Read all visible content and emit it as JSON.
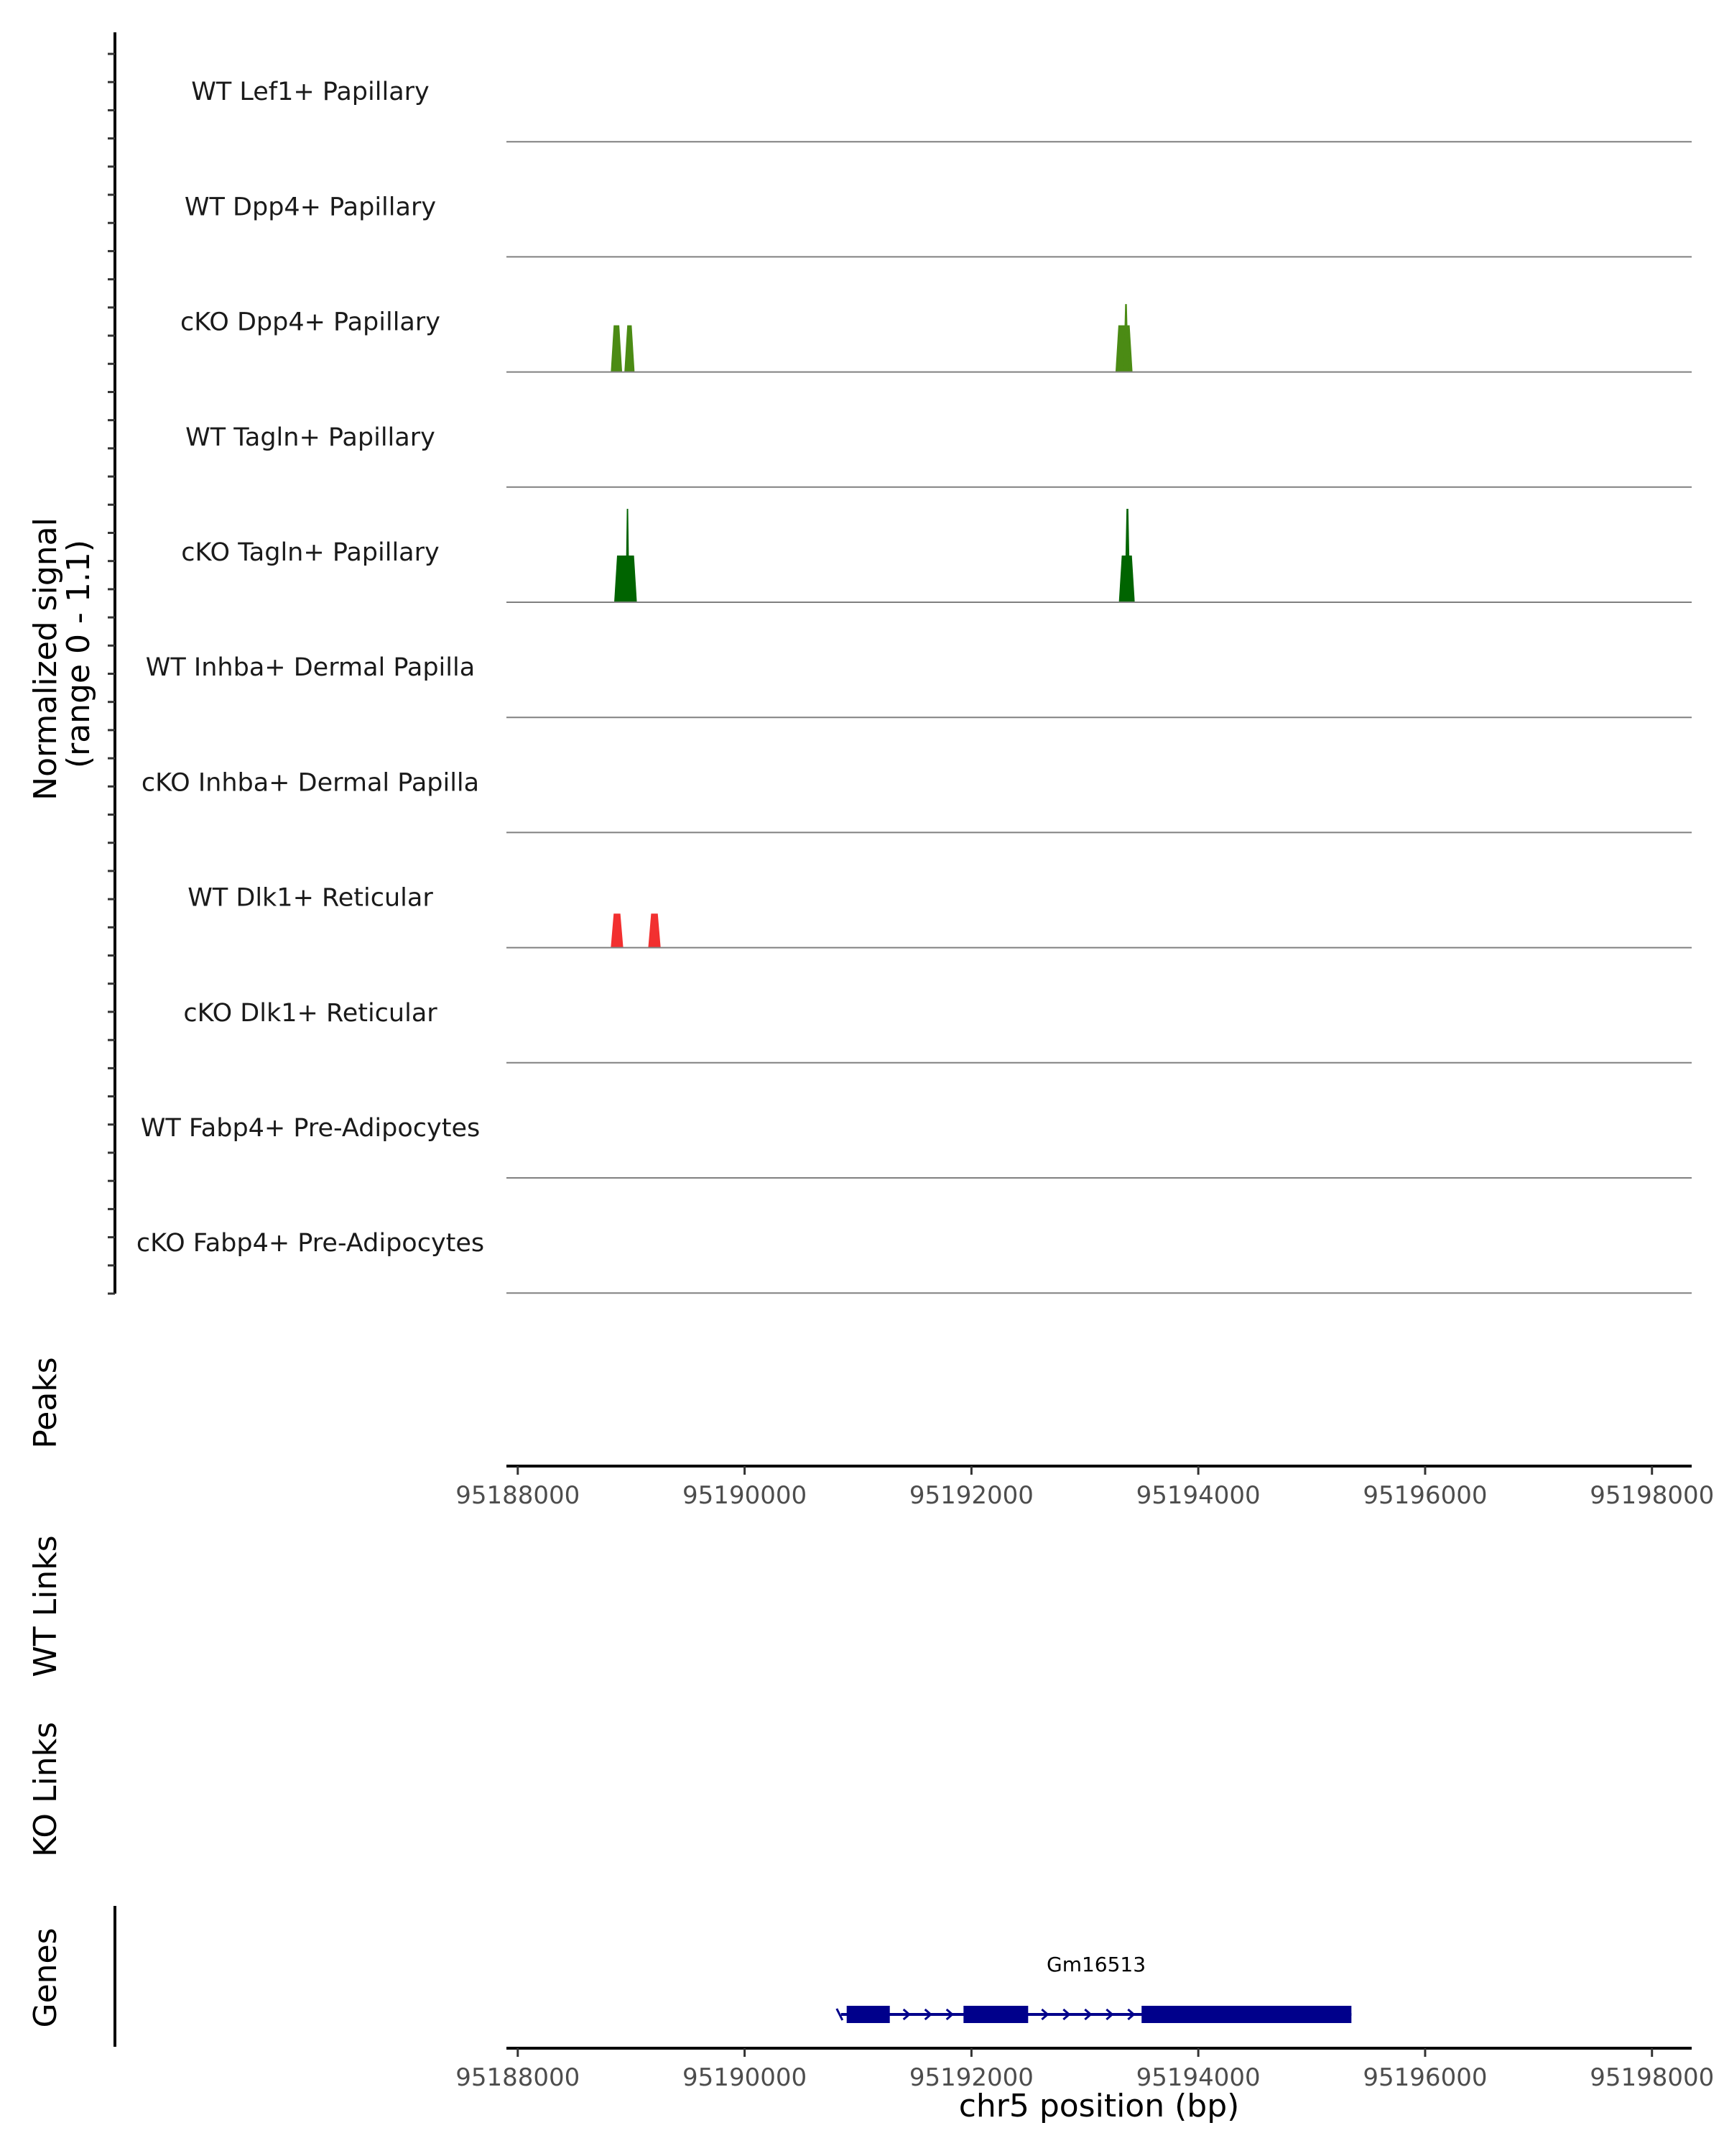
{
  "chart_data": {
    "type": "coverage_tracks",
    "y_axis_title": [
      "Normalized signal",
      "(range 0 - 1.1)"
    ],
    "ylim": [
      0,
      1.1
    ],
    "x_range": [
      95187900,
      95198350
    ],
    "x_ticks": [
      95188000,
      95190000,
      95192000,
      95194000,
      95196000,
      95198000
    ],
    "x_tick_labels": [
      "95188000",
      "95190000",
      "95192000",
      "95194000",
      "95196000",
      "95198000"
    ],
    "xlabel": "chr5 position (bp)",
    "tracks": [
      {
        "name": "WT Lef1+ Papillary",
        "color": "#6B8E23",
        "peaks": []
      },
      {
        "name": "WT Dpp4+ Papillary",
        "color": "#4B8B14",
        "peaks": []
      },
      {
        "name": "cKO Dpp4+ Papillary",
        "color": "#4B8B14",
        "peaks": [
          {
            "start": 95188820,
            "end": 95188920,
            "value": 0.55
          },
          {
            "start": 95188940,
            "end": 95189030,
            "value": 0.55
          },
          {
            "start": 95193270,
            "end": 95193420,
            "value": 0.55
          },
          {
            "start": 95193340,
            "end": 95193385,
            "value": 0.8
          }
        ]
      },
      {
        "name": "WT Tagln+ Papillary",
        "color": "#006400",
        "peaks": []
      },
      {
        "name": "cKO Tagln+ Papillary",
        "color": "#006400",
        "peaks": [
          {
            "start": 95188850,
            "end": 95189050,
            "value": 0.55
          },
          {
            "start": 95188950,
            "end": 95188985,
            "value": 1.1
          },
          {
            "start": 95193300,
            "end": 95193440,
            "value": 0.55
          },
          {
            "start": 95193350,
            "end": 95193400,
            "value": 1.1
          }
        ]
      },
      {
        "name": "WT Inhba+ Dermal Papilla",
        "color": "#2E8B57",
        "peaks": []
      },
      {
        "name": "cKO Inhba+ Dermal Papilla",
        "color": "#2E8B57",
        "peaks": []
      },
      {
        "name": "WT Dlk1+ Reticular",
        "color": "#F23030",
        "peaks": [
          {
            "start": 95188820,
            "end": 95188930,
            "value": 0.4
          },
          {
            "start": 95189150,
            "end": 95189260,
            "value": 0.4
          }
        ]
      },
      {
        "name": "cKO Dlk1+ Reticular",
        "color": "#F23030",
        "peaks": []
      },
      {
        "name": "WT Fabp4+ Pre-Adipocytes",
        "color": "#B22222",
        "peaks": []
      },
      {
        "name": "cKO Fabp4+ Pre-Adipocytes",
        "color": "#B22222",
        "peaks": []
      }
    ],
    "annotation_tracks": [
      "Peaks",
      "WT Links",
      "KO Links",
      "Genes"
    ],
    "gene": {
      "name": "Gm16513",
      "color": "#00008B",
      "start": 95190850,
      "end": 95195350,
      "exons": [
        {
          "start": 95190900,
          "end": 95191280
        },
        {
          "start": 95191930,
          "end": 95192500
        },
        {
          "start": 95193500,
          "end": 95195350
        }
      ]
    }
  }
}
